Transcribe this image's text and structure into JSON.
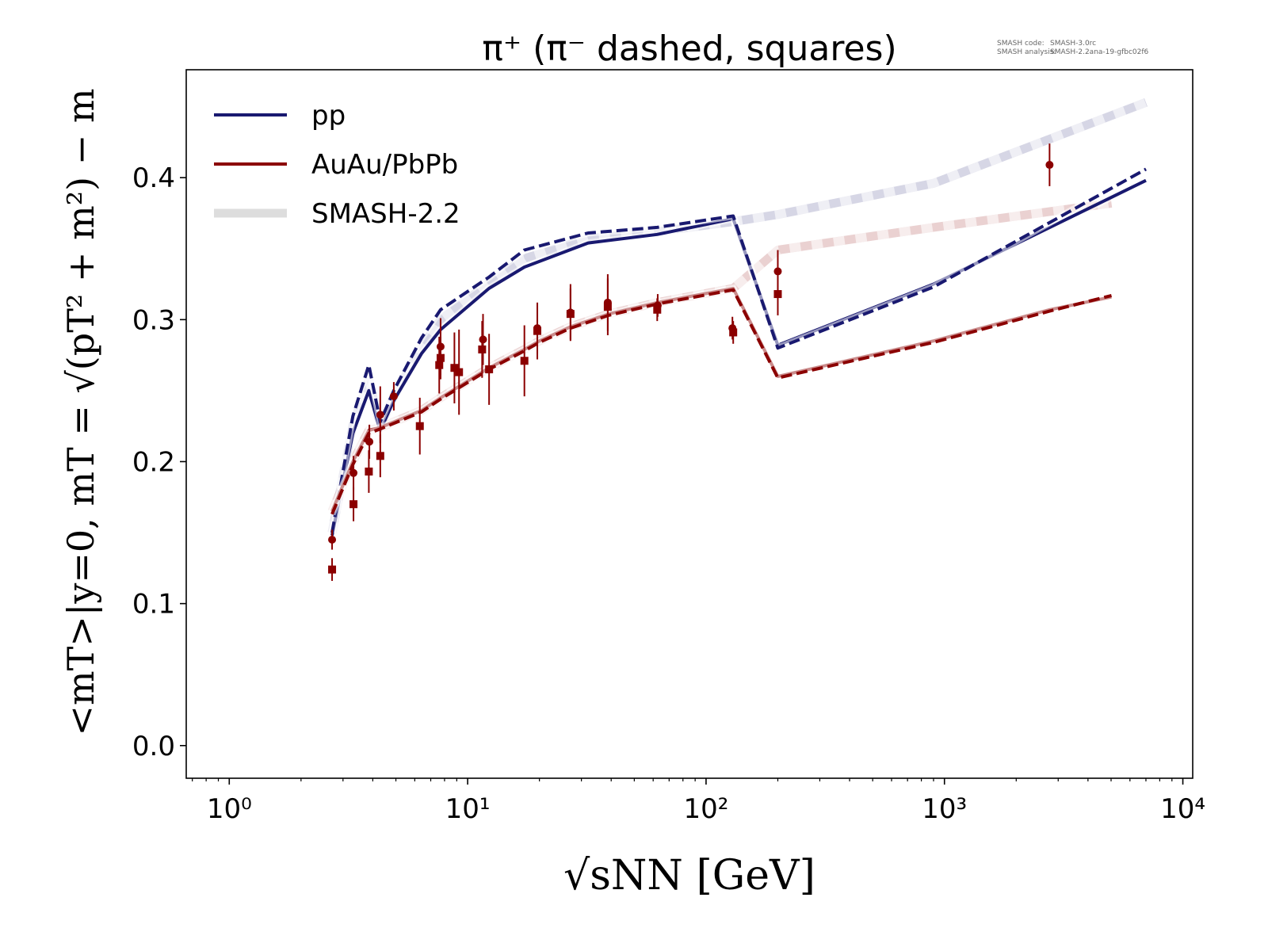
{
  "meta": {
    "code_label": "SMASH code:",
    "code_value": "SMASH-3.0rc",
    "analysis_label": "SMASH analysis:",
    "analysis_value": "SMASH-2.2ana-19-gfbc02f6"
  },
  "chart_data": {
    "type": "line",
    "title": "π⁺ (π⁻ dashed, squares)",
    "xlabel": "√sNN [GeV]",
    "ylabel": "<mT>|y=0, mT = √(pT² + m²) − m",
    "xscale": "log",
    "xlim": [
      0.66,
      11000
    ],
    "ylim": [
      -0.023,
      0.476
    ],
    "xticks": [
      {
        "value": 1,
        "label": "10⁰"
      },
      {
        "value": 10,
        "label": "10¹"
      },
      {
        "value": 100,
        "label": "10²"
      },
      {
        "value": 1000,
        "label": "10³"
      },
      {
        "value": 10000,
        "label": "10⁴"
      }
    ],
    "yticks": [
      {
        "value": 0.0,
        "label": "0.0"
      },
      {
        "value": 0.1,
        "label": "0.1"
      },
      {
        "value": 0.2,
        "label": "0.2"
      },
      {
        "value": 0.3,
        "label": "0.3"
      },
      {
        "value": 0.4,
        "label": "0.4"
      }
    ],
    "legend": {
      "placement": "top-left",
      "entries": [
        {
          "label": "pp",
          "color": "#191970",
          "style": "solid"
        },
        {
          "label": "AuAu/PbPb",
          "color": "#8b0000",
          "style": "solid"
        },
        {
          "label": "SMASH-2.2",
          "color": "#dddddd",
          "style": "thick-light"
        }
      ]
    },
    "series": [
      {
        "name": "SMASH-2.2 pp π+",
        "color": "#191970",
        "kind": "ref",
        "dash": false,
        "points": [
          [
            2.7,
            0.15
          ],
          [
            3.3,
            0.226
          ],
          [
            3.85,
            0.258
          ],
          [
            4.3,
            0.225
          ],
          [
            4.9,
            0.246
          ],
          [
            6.4,
            0.281
          ],
          [
            7.7,
            0.3
          ],
          [
            12.3,
            0.326
          ],
          [
            17.3,
            0.343
          ],
          [
            32,
            0.357
          ],
          [
            62.4,
            0.362
          ],
          [
            130,
            0.369
          ],
          [
            200,
            0.374
          ],
          [
            900,
            0.396
          ],
          [
            7000,
            0.453
          ]
        ]
      },
      {
        "name": "SMASH-2.2 AuAu π+",
        "color": "#8b0000",
        "kind": "ref",
        "dash": false,
        "points": [
          [
            2.7,
            0.165
          ],
          [
            3.3,
            0.2
          ],
          [
            3.85,
            0.222
          ],
          [
            4.3,
            0.224
          ],
          [
            6.4,
            0.236
          ],
          [
            7.7,
            0.245
          ],
          [
            9,
            0.252
          ],
          [
            12.3,
            0.266
          ],
          [
            17.3,
            0.279
          ],
          [
            20,
            0.285
          ],
          [
            27,
            0.295
          ],
          [
            39,
            0.304
          ],
          [
            62.4,
            0.312
          ],
          [
            130,
            0.322
          ],
          [
            200,
            0.349
          ],
          [
            900,
            0.365
          ],
          [
            5020,
            0.382
          ]
        ]
      },
      {
        "name": "pp π+",
        "color": "#191970",
        "kind": "main",
        "dash": false,
        "points": [
          [
            2.7,
            0.148
          ],
          [
            3.3,
            0.22
          ],
          [
            3.85,
            0.25
          ],
          [
            4.3,
            0.222
          ],
          [
            4.9,
            0.243
          ],
          [
            6.4,
            0.276
          ],
          [
            7.7,
            0.293
          ],
          [
            12.3,
            0.322
          ],
          [
            17.3,
            0.337
          ],
          [
            32,
            0.354
          ],
          [
            62.4,
            0.36
          ],
          [
            130,
            0.371
          ],
          [
            200,
            0.282
          ],
          [
            900,
            0.325
          ],
          [
            7000,
            0.398
          ]
        ]
      },
      {
        "name": "pp π-",
        "color": "#191970",
        "kind": "main",
        "dash": true,
        "points": [
          [
            2.7,
            0.15
          ],
          [
            3.3,
            0.232
          ],
          [
            3.85,
            0.268
          ],
          [
            4.3,
            0.228
          ],
          [
            4.9,
            0.25
          ],
          [
            6.4,
            0.287
          ],
          [
            7.7,
            0.307
          ],
          [
            12.3,
            0.33
          ],
          [
            17.3,
            0.349
          ],
          [
            32,
            0.361
          ],
          [
            62.4,
            0.365
          ],
          [
            130,
            0.373
          ],
          [
            200,
            0.28
          ],
          [
            900,
            0.323
          ],
          [
            7000,
            0.406
          ]
        ]
      },
      {
        "name": "AuAu π+",
        "color": "#8b0000",
        "kind": "main",
        "dash": false,
        "points": [
          [
            2.7,
            0.165
          ],
          [
            3.3,
            0.2
          ],
          [
            3.85,
            0.222
          ],
          [
            4.3,
            0.224
          ],
          [
            6.4,
            0.236
          ],
          [
            7.7,
            0.245
          ],
          [
            9,
            0.252
          ],
          [
            12.3,
            0.266
          ],
          [
            17.3,
            0.279
          ],
          [
            20,
            0.285
          ],
          [
            27,
            0.295
          ],
          [
            39,
            0.304
          ],
          [
            62.4,
            0.312
          ],
          [
            130,
            0.322
          ],
          [
            200,
            0.26
          ],
          [
            900,
            0.285
          ],
          [
            2760,
            0.307
          ],
          [
            5020,
            0.316
          ]
        ]
      },
      {
        "name": "AuAu π-",
        "color": "#8b0000",
        "kind": "main",
        "dash": true,
        "points": [
          [
            2.7,
            0.163
          ],
          [
            3.3,
            0.198
          ],
          [
            3.85,
            0.22
          ],
          [
            4.3,
            0.223
          ],
          [
            6.4,
            0.235
          ],
          [
            7.7,
            0.244
          ],
          [
            9,
            0.251
          ],
          [
            12.3,
            0.265
          ],
          [
            17.3,
            0.278
          ],
          [
            20,
            0.284
          ],
          [
            27,
            0.294
          ],
          [
            39,
            0.303
          ],
          [
            62.4,
            0.311
          ],
          [
            130,
            0.321
          ],
          [
            200,
            0.259
          ],
          [
            900,
            0.284
          ],
          [
            2760,
            0.306
          ],
          [
            5020,
            0.317
          ]
        ]
      }
    ],
    "experimental": {
      "color": "#8b0000",
      "pi_plus_circles": [
        [
          2.7,
          0.145,
          0.007
        ],
        [
          3.32,
          0.192,
          0.012
        ],
        [
          3.87,
          0.214,
          0.012
        ],
        [
          4.3,
          0.233,
          0.02
        ],
        [
          4.9,
          0.246,
          0.01
        ],
        [
          7.7,
          0.281,
          0.02
        ],
        [
          11.6,
          0.286,
          0.018
        ],
        [
          19.6,
          0.294,
          0.018
        ],
        [
          27,
          0.305,
          0.02
        ],
        [
          38.7,
          0.312,
          0.02
        ],
        [
          62.7,
          0.31,
          0.008
        ],
        [
          129,
          0.294,
          0.008
        ],
        [
          200,
          0.334,
          0.015
        ],
        [
          2760,
          0.409,
          0.015
        ]
      ],
      "pi_minus_squares": [
        [
          2.7,
          0.124,
          0.008
        ],
        [
          3.32,
          0.17,
          0.012
        ],
        [
          3.85,
          0.193,
          0.015
        ],
        [
          4.3,
          0.204,
          0.015
        ],
        [
          6.3,
          0.225,
          0.02
        ],
        [
          7.6,
          0.268,
          0.02
        ],
        [
          7.7,
          0.273,
          0.015
        ],
        [
          8.8,
          0.266,
          0.025
        ],
        [
          9.2,
          0.263,
          0.03
        ],
        [
          11.5,
          0.279,
          0.02
        ],
        [
          12.3,
          0.265,
          0.025
        ],
        [
          17.3,
          0.271,
          0.025
        ],
        [
          19.6,
          0.292,
          0.02
        ],
        [
          27,
          0.304,
          0.018
        ],
        [
          38.7,
          0.309,
          0.02
        ],
        [
          62.4,
          0.307,
          0.008
        ],
        [
          130,
          0.291,
          0.008
        ],
        [
          200,
          0.318,
          0.015
        ]
      ]
    }
  }
}
